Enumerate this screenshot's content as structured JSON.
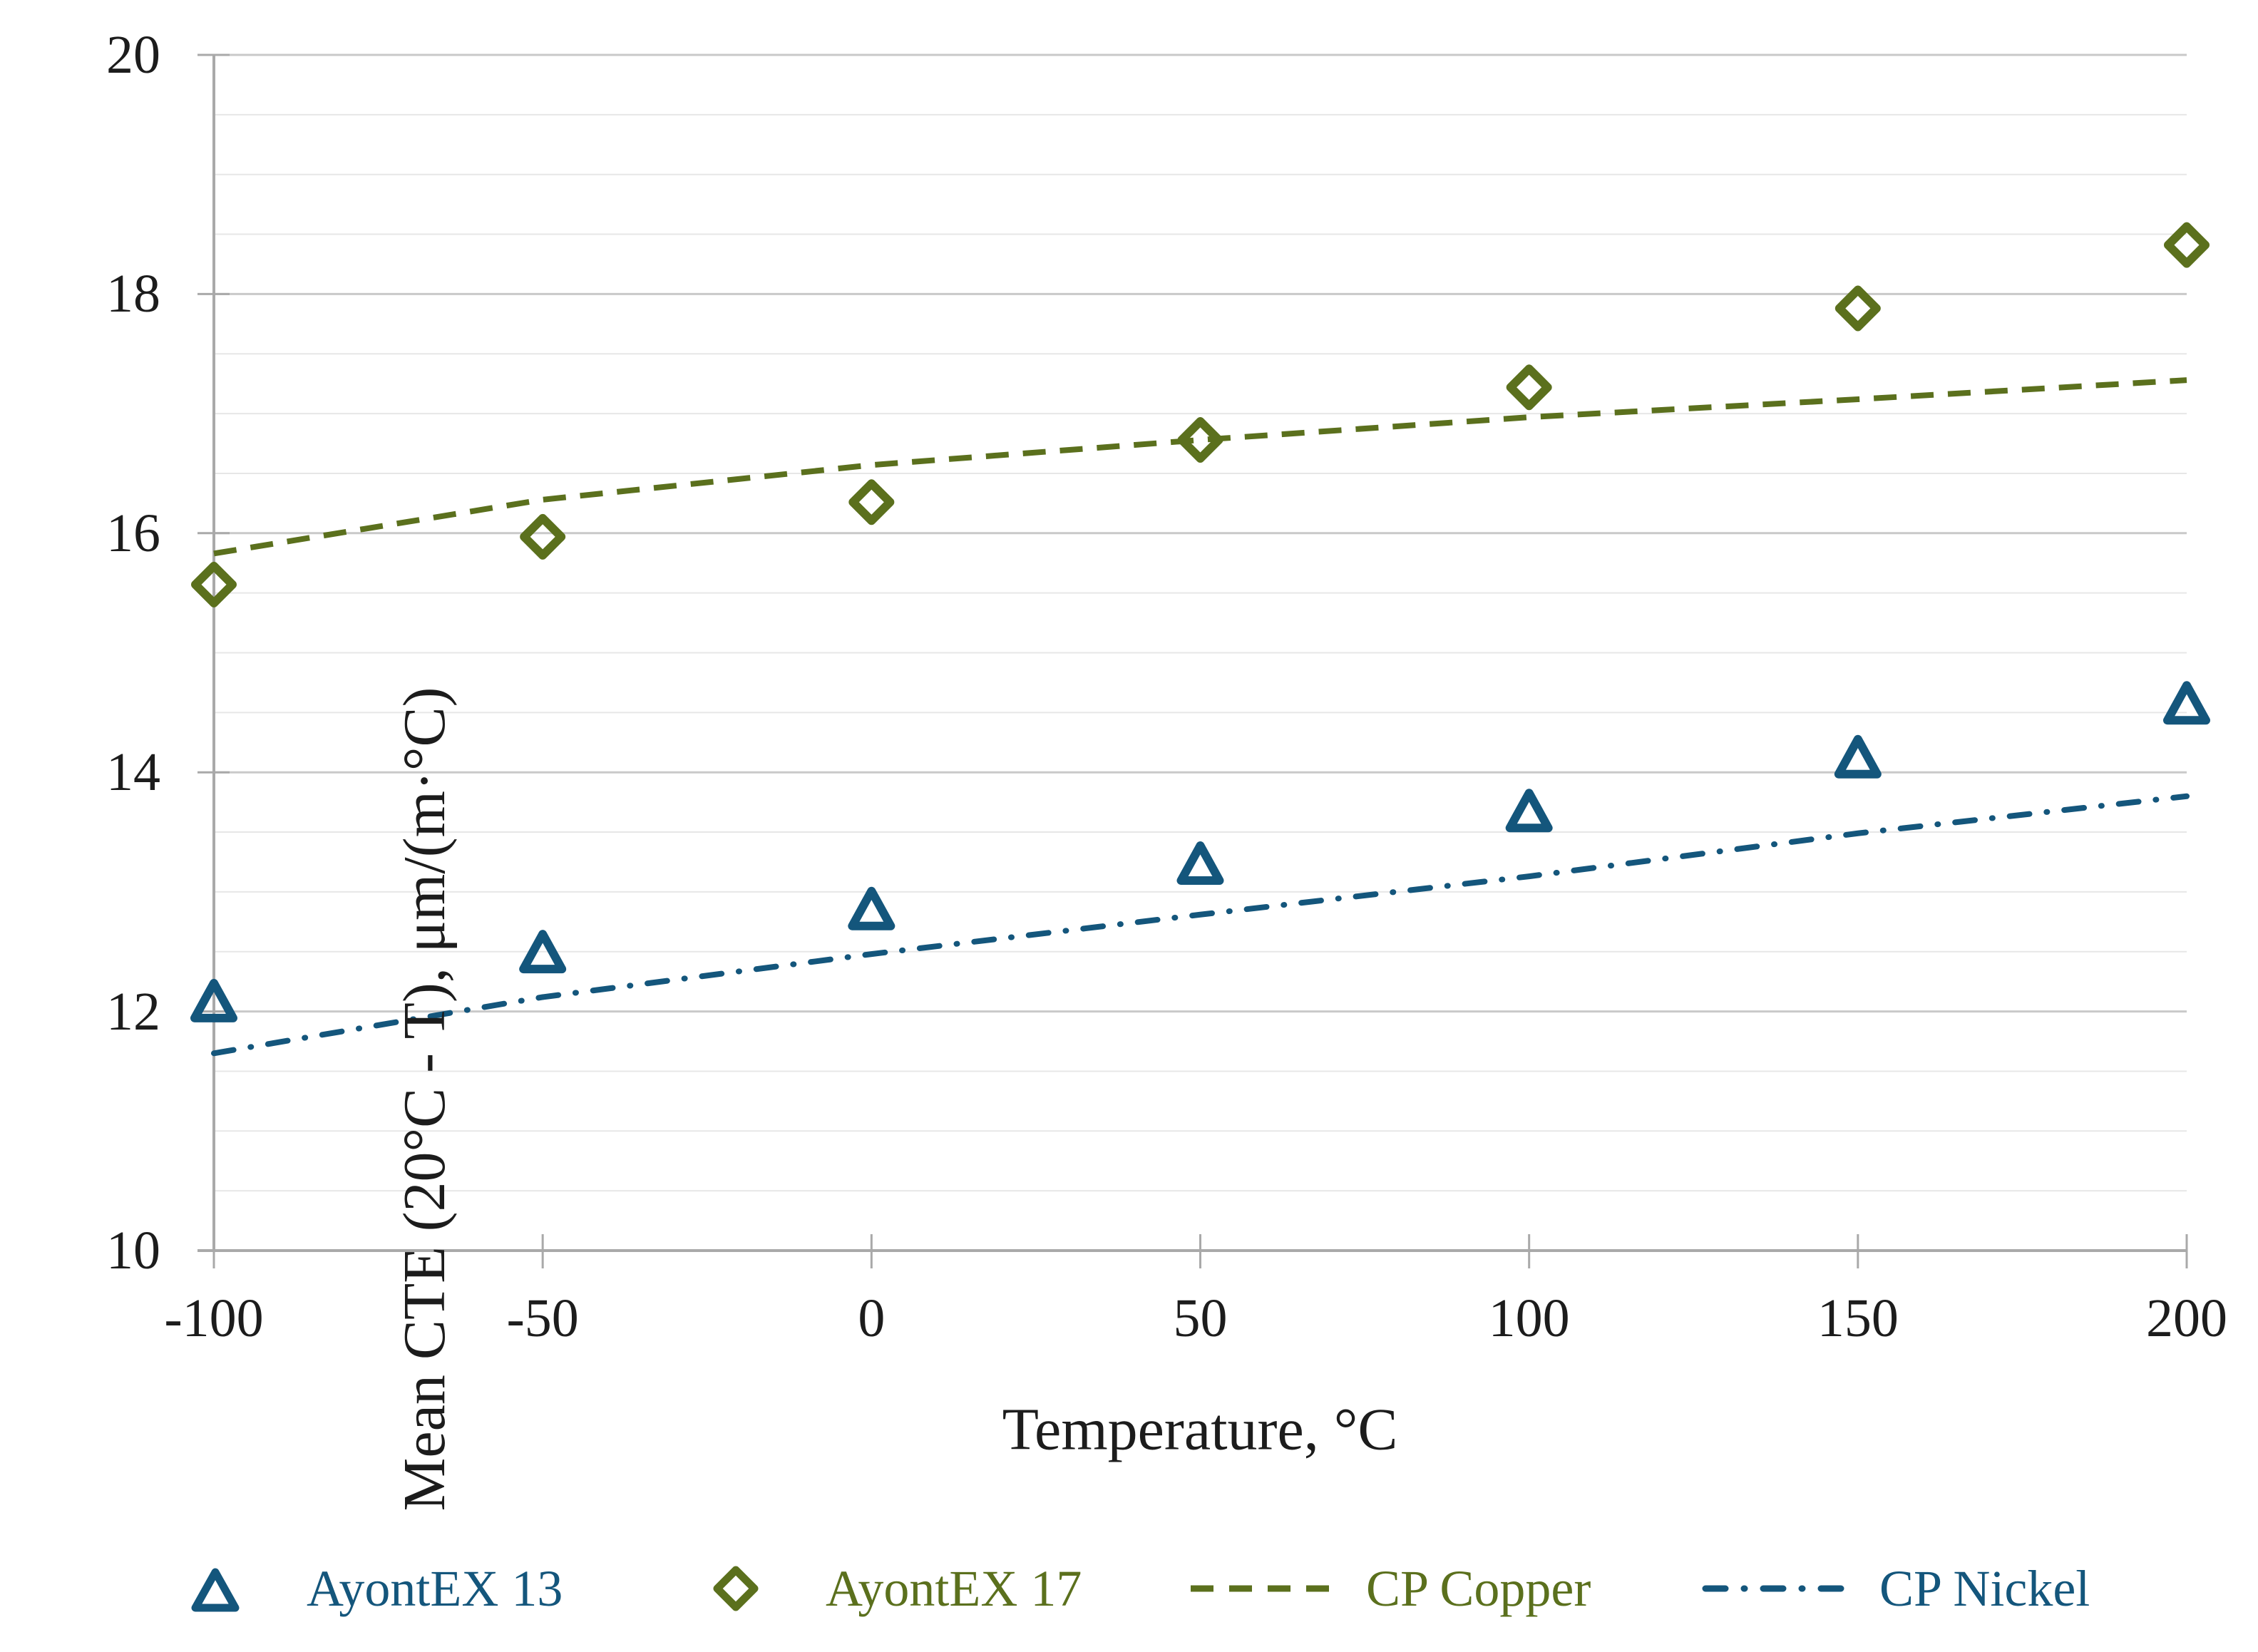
{
  "chart_data": {
    "type": "scatter",
    "title": "",
    "xlabel": "Temperature, °C",
    "ylabel": "Mean CTE (20°C - T), μm/(m·°C)",
    "xlim": [
      -100,
      200
    ],
    "ylim": [
      10,
      20
    ],
    "x_ticks": [
      -100,
      -50,
      0,
      50,
      100,
      150,
      200
    ],
    "x_tick_labels": [
      "-100",
      "-50",
      "0",
      "50",
      "100",
      "150",
      "200"
    ],
    "y_ticks": [
      10,
      12,
      14,
      16,
      18,
      20
    ],
    "y_tick_labels": [
      "10",
      "12",
      "14",
      "16",
      "18",
      "20"
    ],
    "y_minor_step": 0.5,
    "grid": "horizontal-only",
    "legend_position": "bottom",
    "series": [
      {
        "name": "AyontEX 13",
        "type": "scatter",
        "marker": "triangle",
        "color": "#14567c",
        "x": [
          -100,
          -50,
          0,
          50,
          100,
          150,
          200
        ],
        "y": [
          12.07,
          12.48,
          12.84,
          13.22,
          13.66,
          14.11,
          14.56
        ]
      },
      {
        "name": "AyontEX 17",
        "type": "scatter",
        "marker": "diamond",
        "color": "#5b701d",
        "x": [
          -100,
          -50,
          0,
          50,
          100,
          150,
          200
        ],
        "y": [
          15.57,
          15.97,
          16.26,
          16.78,
          17.22,
          17.88,
          18.41
        ]
      },
      {
        "name": "CP Copper",
        "type": "line",
        "style": "dashed",
        "color": "#5b701d",
        "x": [
          -100,
          -50,
          0,
          50,
          100,
          150,
          200
        ],
        "y": [
          15.83,
          16.28,
          16.57,
          16.78,
          16.97,
          17.12,
          17.28
        ]
      },
      {
        "name": "CP Nickel",
        "type": "line",
        "style": "dashdot",
        "color": "#14567c",
        "x": [
          -100,
          -50,
          0,
          50,
          100,
          150,
          200
        ],
        "y": [
          11.65,
          12.12,
          12.48,
          12.81,
          13.13,
          13.49,
          13.8
        ]
      }
    ],
    "colors": {
      "axis": "#a9a9a9",
      "grid_major": "#c9c9c9",
      "grid_minor": "#e7e7e7",
      "text": "#1c1c1c",
      "blue_series": "#14567c",
      "olive_series": "#5b701d"
    }
  }
}
